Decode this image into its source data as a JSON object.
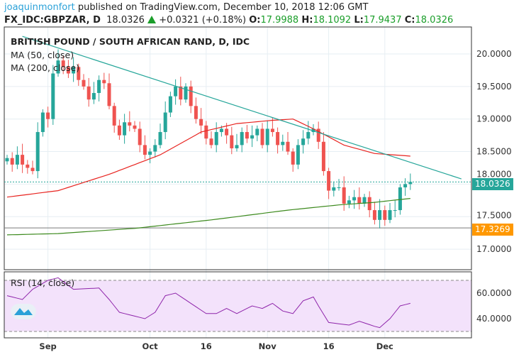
{
  "header": {
    "user": "joaquinmonfort",
    "published": "published on TradingView.com, December 10, 2018 12:06 GMT",
    "symbol": "FX_IDC:GBPZAR, D",
    "price": "18.0326",
    "change": "+0.0321 (+0.18%)",
    "o_label": "O:",
    "o": "17.9988",
    "h_label": "H:",
    "h": "18.1092",
    "l_label": "L:",
    "l": "17.9437",
    "c_label": "C:",
    "c": "18.0326"
  },
  "colors": {
    "up": "#26a69a",
    "down": "#ef5350",
    "ma50": "#e8231f",
    "ma200": "#3d8a1e",
    "trend": "#26a69a",
    "rsi": "#8e24aa",
    "rsi_band": "#f3e2fb",
    "orange": "#ff9800"
  },
  "chart_data": {
    "type": "candlestick",
    "title": "BRITISH POUND / SOUTH AFRICAN RAND, D, IDC",
    "legend": [
      "MA (50, close)",
      "MA (200, close)"
    ],
    "rsi_title": "RSI (14, close)",
    "ylim": [
      16.7,
      20.35
    ],
    "yticks": [
      "20.0000",
      "19.5000",
      "19.0000",
      "18.5000",
      "18.0000",
      "17.5000",
      "17.0000"
    ],
    "rsi_ticks": [
      "60.0000",
      "40.0000"
    ],
    "rsi_bands": [
      70,
      30
    ],
    "xticks": [
      "Sep",
      "Oct",
      "16",
      "Nov",
      "16",
      "Dec"
    ],
    "xtick_index": [
      8,
      28,
      39,
      51,
      63,
      74
    ],
    "last_price": "18.0326",
    "marker_price": "17.3269",
    "closes": [
      18.4,
      18.3,
      18.45,
      18.3,
      18.25,
      18.2,
      18.8,
      19.1,
      19.0,
      19.7,
      19.9,
      19.8,
      19.7,
      19.8,
      19.6,
      19.5,
      19.3,
      19.4,
      19.6,
      19.55,
      19.2,
      18.9,
      18.75,
      18.95,
      18.9,
      18.85,
      18.6,
      18.45,
      18.5,
      18.6,
      18.8,
      19.1,
      19.35,
      19.5,
      19.3,
      19.5,
      19.2,
      19.0,
      18.9,
      18.7,
      18.6,
      18.8,
      18.85,
      18.75,
      18.55,
      18.6,
      18.8,
      18.7,
      18.75,
      18.85,
      18.6,
      18.85,
      18.8,
      18.6,
      18.65,
      18.5,
      18.3,
      18.6,
      18.7,
      18.8,
      18.85,
      18.65,
      18.2,
      17.9,
      17.95,
      17.95,
      17.7,
      17.75,
      17.8,
      17.7,
      17.8,
      17.6,
      17.45,
      17.6,
      17.45,
      17.6,
      17.6,
      17.95,
      18.0,
      18.0326
    ],
    "ma50": [
      [
        0,
        17.8
      ],
      [
        10,
        17.9
      ],
      [
        20,
        18.15
      ],
      [
        30,
        18.45
      ],
      [
        38,
        18.8
      ],
      [
        45,
        18.93
      ],
      [
        52,
        18.98
      ],
      [
        56,
        19.0
      ],
      [
        60,
        18.85
      ],
      [
        66,
        18.6
      ],
      [
        72,
        18.47
      ],
      [
        79,
        18.43
      ]
    ],
    "ma200": [
      [
        0,
        17.22
      ],
      [
        10,
        17.24
      ],
      [
        25,
        17.32
      ],
      [
        40,
        17.45
      ],
      [
        55,
        17.6
      ],
      [
        65,
        17.68
      ],
      [
        72,
        17.72
      ],
      [
        79,
        17.78
      ]
    ],
    "trendline": [
      [
        3,
        20.27
      ],
      [
        89,
        18.08
      ]
    ],
    "rsi": [
      [
        0,
        58
      ],
      [
        3,
        55
      ],
      [
        5,
        63
      ],
      [
        8,
        70
      ],
      [
        10,
        72
      ],
      [
        13,
        63
      ],
      [
        18,
        64
      ],
      [
        20,
        55
      ],
      [
        22,
        45
      ],
      [
        25,
        42
      ],
      [
        27,
        40
      ],
      [
        29,
        45
      ],
      [
        31,
        58
      ],
      [
        33,
        60
      ],
      [
        36,
        52
      ],
      [
        39,
        44
      ],
      [
        41,
        44
      ],
      [
        43,
        48
      ],
      [
        45,
        44
      ],
      [
        48,
        50
      ],
      [
        50,
        48
      ],
      [
        52,
        52
      ],
      [
        54,
        46
      ],
      [
        56,
        44
      ],
      [
        58,
        54
      ],
      [
        60,
        57
      ],
      [
        61,
        50
      ],
      [
        63,
        37
      ],
      [
        65,
        36
      ],
      [
        67,
        35
      ],
      [
        69,
        38
      ],
      [
        72,
        34
      ],
      [
        73,
        33
      ],
      [
        75,
        40
      ],
      [
        77,
        50
      ],
      [
        79,
        52
      ]
    ]
  }
}
